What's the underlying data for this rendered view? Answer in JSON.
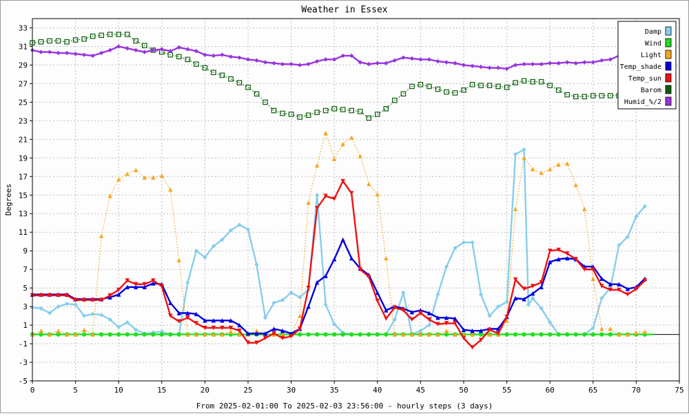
{
  "chart_data": {
    "type": "line",
    "title": "Weather in Essex",
    "xlabel": "From 2025-02-01:00 To 2025-02-03 23:56:00 - hourly steps (3 days)",
    "ylabel": "Degrees",
    "xlim": [
      0,
      75
    ],
    "ylim": [
      -5,
      34
    ],
    "x_ticks": [
      0,
      5,
      10,
      15,
      20,
      25,
      30,
      35,
      40,
      45,
      50,
      55,
      60,
      65,
      70,
      75
    ],
    "y_ticks": [
      -5,
      -3,
      -1,
      1,
      3,
      5,
      7,
      9,
      11,
      13,
      15,
      17,
      19,
      21,
      23,
      25,
      27,
      29,
      31,
      33
    ],
    "grid": true,
    "legend_position": "top-right",
    "series": [
      {
        "name": "Damp",
        "color": "#87ceeb",
        "marker": "diamond",
        "style": "solid",
        "x": [
          0,
          1,
          2,
          3,
          4,
          5,
          6,
          7,
          8,
          9,
          10,
          11,
          12,
          13,
          14,
          15,
          16,
          17,
          18,
          19,
          20,
          21,
          22,
          23,
          24,
          25,
          26,
          27,
          28,
          29,
          30,
          31,
          32,
          33,
          34,
          35,
          36,
          37,
          38,
          39,
          40,
          41,
          42,
          43,
          44,
          45,
          46,
          47,
          48,
          49,
          50,
          51,
          52,
          53,
          54,
          55,
          56,
          57,
          57.5,
          58,
          59,
          60,
          61,
          62,
          63,
          64,
          65,
          66,
          67,
          68,
          69,
          70,
          71
        ],
        "values": [
          2.9,
          2.8,
          2.3,
          3.0,
          3.3,
          3.2,
          2.0,
          2.2,
          2.1,
          1.6,
          0.8,
          1.3,
          0.5,
          0.1,
          0.2,
          0.3,
          0.0,
          0.0,
          5.6,
          9.0,
          8.3,
          9.5,
          10.2,
          11.2,
          11.8,
          11.3,
          7.5,
          1.8,
          3.4,
          3.7,
          4.5,
          4.0,
          4.8,
          15.0,
          3.2,
          1.1,
          0.2,
          0.0,
          0.0,
          0.0,
          0.0,
          0.0,
          1.6,
          4.5,
          0.0,
          0.4,
          1.0,
          4.3,
          7.3,
          9.3,
          9.9,
          9.9,
          4.3,
          2.0,
          3.0,
          3.5,
          19.4,
          19.9,
          3.2,
          3.9,
          2.8,
          1.3,
          0.0,
          0.0,
          0.0,
          0.0,
          0.7,
          3.9,
          5.0,
          9.6,
          10.5,
          12.7,
          13.8
        ]
      },
      {
        "name": "Wind",
        "color": "#22dd22",
        "marker": "circle",
        "style": "solid",
        "x": [
          0,
          72
        ],
        "values": [
          0,
          0
        ]
      },
      {
        "name": "Light",
        "color": "#f5a623",
        "marker": "triangle-up",
        "style": "dotted",
        "x": [
          0,
          1,
          2,
          3,
          4,
          5,
          6,
          7,
          8,
          9,
          10,
          11,
          12,
          13,
          14,
          15,
          16,
          17,
          18,
          19,
          20,
          21,
          22,
          23,
          24,
          25,
          26,
          27,
          28,
          29,
          30,
          31,
          32,
          33,
          34,
          35,
          36,
          37,
          38,
          39,
          40,
          41,
          42,
          43,
          44,
          45,
          46,
          47,
          48,
          49,
          50,
          51,
          52,
          53,
          54,
          55,
          56,
          57,
          58,
          59,
          60,
          61,
          62,
          63,
          64,
          65,
          66,
          67,
          68,
          69,
          70,
          71
        ],
        "values": [
          0.0,
          0.4,
          0.0,
          0.4,
          0.0,
          0.0,
          0.5,
          0.0,
          10.6,
          14.9,
          16.7,
          17.3,
          17.7,
          16.9,
          16.9,
          17.1,
          15.6,
          8.0,
          0.0,
          0.0,
          0.0,
          0.0,
          0.0,
          0.3,
          0.0,
          0.0,
          0.4,
          0.0,
          0.0,
          0.0,
          0.0,
          2.0,
          14.2,
          18.2,
          21.7,
          18.9,
          20.5,
          21.2,
          19.2,
          16.2,
          15.1,
          8.2,
          0.0,
          0.0,
          0.0,
          0.0,
          0.0,
          0.0,
          0.4,
          0.0,
          0.0,
          0.0,
          0.4,
          0.0,
          0.0,
          1.5,
          13.5,
          19.0,
          17.8,
          17.4,
          17.8,
          18.3,
          18.4,
          16.1,
          13.5,
          6.0,
          0.6,
          0.6,
          0.0,
          0.0,
          0.2,
          0.3
        ]
      },
      {
        "name": "Temp_shade",
        "color": "#0000dd",
        "marker": "triangle-up",
        "style": "solid",
        "x": [
          0,
          1,
          2,
          3,
          4,
          5,
          6,
          7,
          8,
          9,
          10,
          11,
          12,
          13,
          14,
          15,
          16,
          17,
          18,
          19,
          20,
          21,
          22,
          23,
          24,
          25,
          26,
          27,
          28,
          29,
          30,
          31,
          32,
          33,
          34,
          35,
          36,
          37,
          38,
          39,
          40,
          41,
          42,
          43,
          44,
          45,
          46,
          47,
          48,
          49,
          50,
          51,
          52,
          53,
          54,
          55,
          56,
          57,
          58,
          59,
          60,
          61,
          62,
          63,
          64,
          65,
          66,
          67,
          68,
          69,
          70,
          71
        ],
        "values": [
          4.3,
          4.3,
          4.3,
          4.3,
          4.3,
          3.8,
          3.8,
          3.8,
          3.8,
          4.0,
          4.3,
          5.1,
          5.1,
          5.1,
          5.5,
          5.4,
          3.4,
          2.3,
          2.3,
          2.2,
          1.5,
          1.5,
          1.5,
          1.5,
          1.0,
          0.1,
          0.1,
          0.1,
          0.6,
          0.4,
          0.1,
          0.6,
          3.0,
          5.6,
          6.3,
          8.1,
          10.2,
          8.2,
          7.1,
          6.4,
          4.5,
          2.6,
          3.0,
          2.8,
          2.4,
          2.6,
          2.3,
          1.8,
          1.8,
          1.7,
          0.5,
          0.4,
          0.4,
          0.6,
          0.6,
          1.9,
          3.9,
          3.8,
          4.4,
          5.1,
          7.8,
          8.1,
          8.2,
          8.1,
          7.3,
          7.3,
          6.0,
          5.4,
          5.4,
          4.9,
          5.1,
          6.0
        ]
      },
      {
        "name": "Temp_sun",
        "color": "#ee1111",
        "marker": "triangle-down",
        "style": "solid",
        "x": [
          0,
          1,
          2,
          3,
          4,
          5,
          6,
          7,
          8,
          9,
          10,
          11,
          12,
          13,
          14,
          15,
          16,
          17,
          18,
          19,
          20,
          21,
          22,
          23,
          24,
          25,
          26,
          27,
          28,
          29,
          30,
          31,
          32,
          33,
          34,
          35,
          36,
          37,
          38,
          39,
          40,
          41,
          42,
          43,
          44,
          45,
          46,
          47,
          48,
          49,
          50,
          51,
          52,
          53,
          54,
          55,
          56,
          57,
          58,
          59,
          60,
          61,
          62,
          63,
          64,
          65,
          66,
          67,
          68,
          69,
          70,
          71
        ],
        "values": [
          4.2,
          4.2,
          4.2,
          4.2,
          4.2,
          3.7,
          3.7,
          3.7,
          3.7,
          4.2,
          4.8,
          5.8,
          5.4,
          5.4,
          5.8,
          5.2,
          2.0,
          1.4,
          1.8,
          1.2,
          0.7,
          0.7,
          0.7,
          0.7,
          0.4,
          -0.9,
          -0.9,
          -0.4,
          0.1,
          -0.4,
          -0.2,
          0.6,
          5.0,
          13.6,
          14.9,
          14.6,
          16.5,
          15.2,
          7.0,
          6.2,
          3.6,
          1.7,
          2.9,
          2.6,
          1.6,
          2.3,
          1.6,
          1.1,
          1.2,
          1.2,
          -0.4,
          -1.4,
          -0.6,
          0.5,
          0.1,
          1.9,
          5.9,
          4.9,
          5.2,
          5.6,
          9.0,
          9.1,
          8.7,
          8.1,
          7.0,
          7.0,
          5.2,
          4.8,
          4.8,
          4.3,
          4.9,
          5.8
        ]
      },
      {
        "name": "Barom",
        "color": "#0b5d0b",
        "marker": "square",
        "style": "dotted",
        "x": [
          0,
          1,
          2,
          3,
          4,
          5,
          6,
          7,
          8,
          9,
          10,
          11,
          12,
          13,
          14,
          15,
          16,
          17,
          18,
          19,
          20,
          21,
          22,
          23,
          24,
          25,
          26,
          27,
          28,
          29,
          30,
          31,
          32,
          33,
          34,
          35,
          36,
          37,
          38,
          39,
          40,
          41,
          42,
          43,
          44,
          45,
          46,
          47,
          48,
          49,
          50,
          51,
          52,
          53,
          54,
          55,
          56,
          57,
          58,
          59,
          60,
          61,
          62,
          63,
          64,
          65,
          66,
          67,
          68,
          69,
          70,
          71
        ],
        "values": [
          31.4,
          31.5,
          31.6,
          31.6,
          31.5,
          31.7,
          31.8,
          32.1,
          32.2,
          32.3,
          32.3,
          32.3,
          31.6,
          31.1,
          30.6,
          30.4,
          30.1,
          29.9,
          29.6,
          29.1,
          28.7,
          28.2,
          27.9,
          27.5,
          27.1,
          26.6,
          25.9,
          25.0,
          24.1,
          23.8,
          23.7,
          23.4,
          23.6,
          23.9,
          24.1,
          24.3,
          24.2,
          24.1,
          24.0,
          23.3,
          23.7,
          24.3,
          25.2,
          25.9,
          26.7,
          26.9,
          26.7,
          26.4,
          26.1,
          26.0,
          26.3,
          26.9,
          26.8,
          26.8,
          26.7,
          26.6,
          27.1,
          27.3,
          27.2,
          27.2,
          26.8,
          26.3,
          25.8,
          25.6,
          25.6,
          25.7,
          25.7,
          25.7,
          25.7,
          25.7,
          25.7,
          25.7
        ]
      },
      {
        "name": "Humid_%/2",
        "color": "#9933dd",
        "marker": "diamond",
        "style": "solid",
        "x": [
          0,
          1,
          2,
          3,
          4,
          5,
          6,
          7,
          8,
          9,
          10,
          11,
          12,
          13,
          14,
          15,
          16,
          17,
          18,
          19,
          20,
          21,
          22,
          23,
          24,
          25,
          26,
          27,
          28,
          29,
          30,
          31,
          32,
          33,
          34,
          35,
          36,
          37,
          38,
          39,
          40,
          41,
          42,
          43,
          44,
          45,
          46,
          47,
          48,
          49,
          50,
          51,
          52,
          53,
          54,
          55,
          56,
          57,
          58,
          59,
          60,
          61,
          62,
          63,
          64,
          65,
          66,
          67,
          68,
          69,
          70,
          71
        ],
        "values": [
          30.6,
          30.4,
          30.4,
          30.3,
          30.3,
          30.2,
          30.1,
          30.0,
          30.3,
          30.6,
          31.0,
          30.8,
          30.6,
          30.4,
          30.6,
          30.7,
          30.5,
          30.9,
          30.7,
          30.5,
          30.1,
          30.0,
          30.1,
          29.9,
          29.8,
          29.6,
          29.5,
          29.3,
          29.2,
          29.1,
          29.1,
          29.0,
          29.1,
          29.4,
          29.6,
          29.6,
          30.0,
          30.0,
          29.3,
          29.1,
          29.2,
          29.2,
          29.5,
          29.8,
          29.7,
          29.6,
          29.6,
          29.4,
          29.3,
          29.2,
          29.0,
          28.9,
          28.8,
          28.7,
          28.7,
          28.6,
          29.0,
          29.1,
          29.1,
          29.1,
          29.2,
          29.2,
          29.3,
          29.2,
          29.3,
          29.3,
          29.5,
          29.6,
          30.0,
          30.1,
          30.1,
          30.0
        ]
      }
    ]
  }
}
